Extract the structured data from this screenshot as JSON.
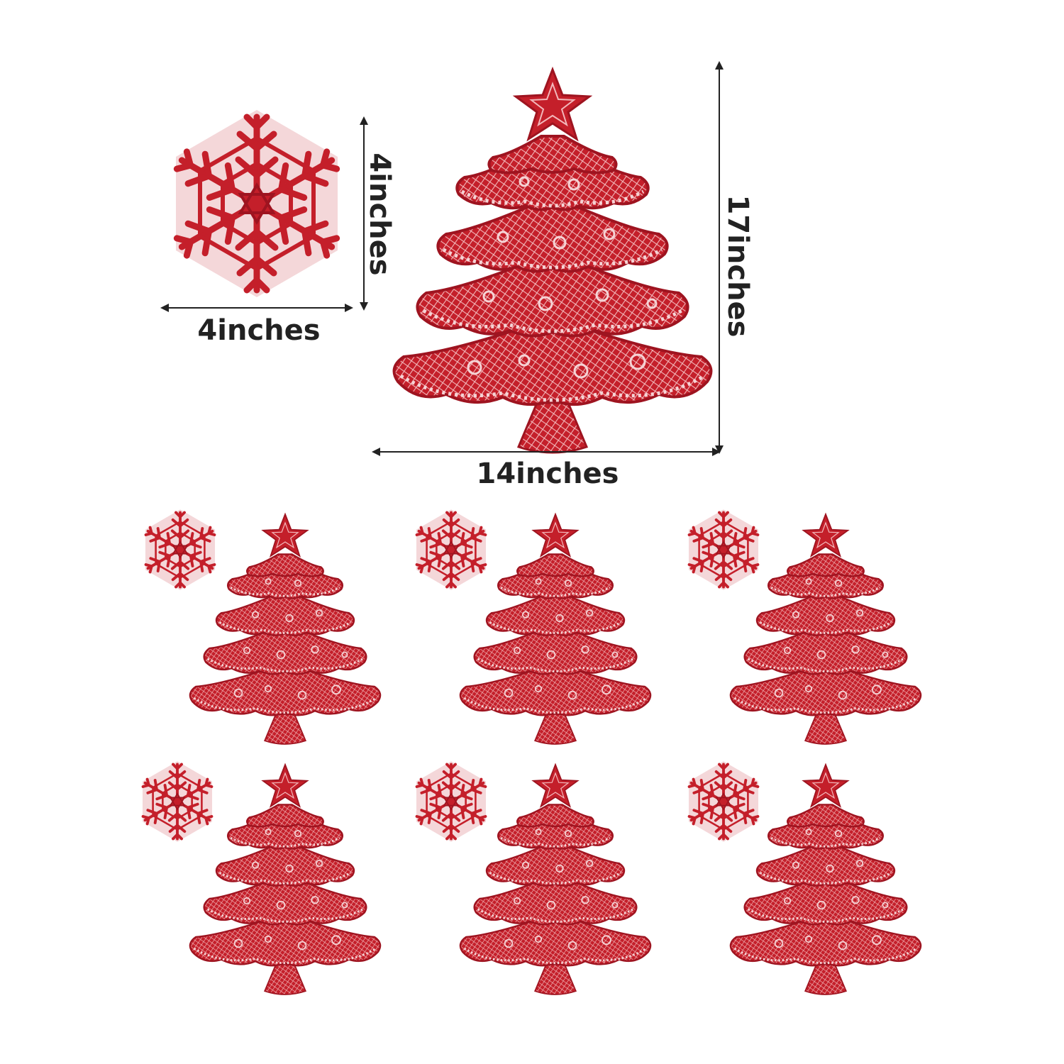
{
  "product": {
    "color": "#c41f2a",
    "color_dark": "#9e1420",
    "color_light": "#e8545c"
  },
  "dimensions": {
    "coaster_width": "4inches",
    "coaster_height": "4inches",
    "placemat_width": "14inches",
    "placemat_height": "17inches"
  },
  "set": {
    "placemats": 6,
    "coasters": 6
  },
  "icons": [
    "christmas-tree-placemat",
    "snowflake-coaster",
    "dimension-arrow"
  ]
}
